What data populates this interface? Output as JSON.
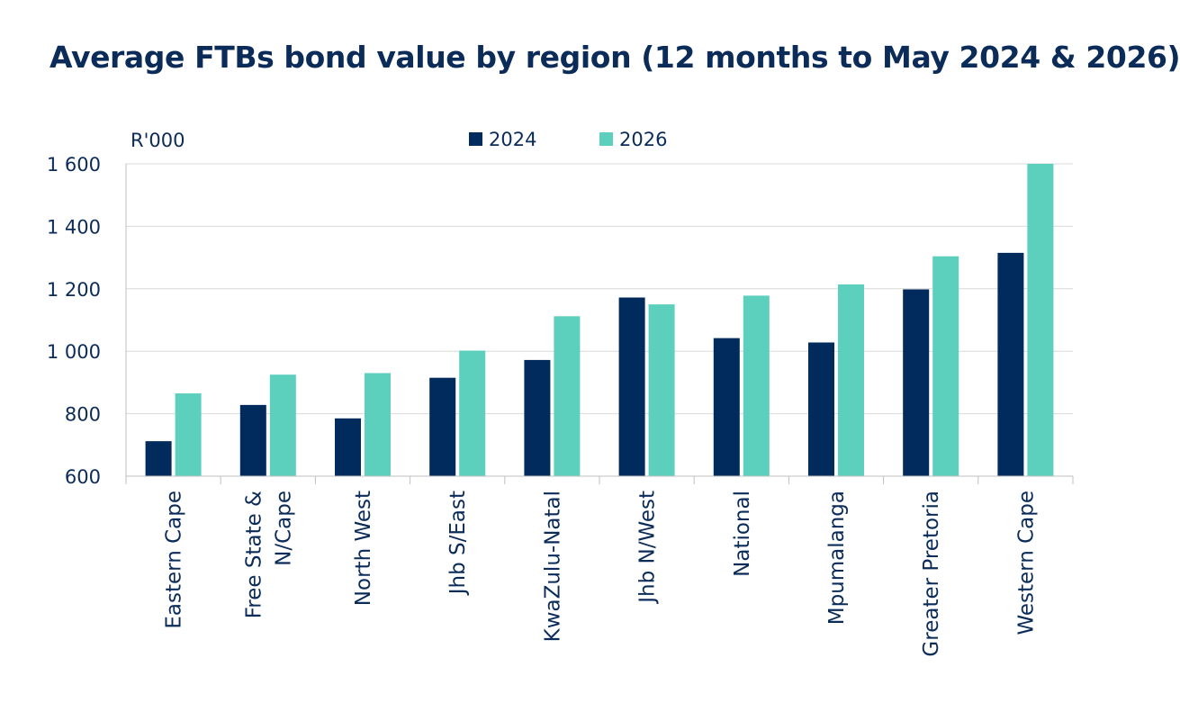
{
  "chart_data": {
    "type": "bar",
    "title": "Average FTBs bond value by region (12 months to May 2024 & 2026)",
    "ylabel": "R'000",
    "xlabel": "",
    "ylim": [
      600,
      1600
    ],
    "yticks": [
      600,
      800,
      1000,
      1200,
      1400,
      1600
    ],
    "ytick_labels": [
      "600",
      "800",
      "1 000",
      "1 200",
      "1 400",
      "1 600"
    ],
    "categories": [
      [
        "Eastern Cape"
      ],
      [
        "Free State &",
        "N/Cape"
      ],
      [
        "North West"
      ],
      [
        "Jhb S/East"
      ],
      [
        "KwaZulu-Natal"
      ],
      [
        "Jhb N/West"
      ],
      [
        "National"
      ],
      [
        "Mpumalanga"
      ],
      [
        "Greater Pretoria"
      ],
      [
        "Western Cape"
      ]
    ],
    "series": [
      {
        "name": "2024",
        "color": "#002b5c",
        "values": [
          712,
          828,
          785,
          915,
          972,
          1172,
          1042,
          1028,
          1198,
          1315
        ]
      },
      {
        "name": "2026",
        "color": "#5cd0bc",
        "values": [
          865,
          925,
          930,
          1002,
          1112,
          1150,
          1178,
          1214,
          1304,
          1600
        ]
      }
    ],
    "grid": true,
    "legend_position": "top-center"
  }
}
